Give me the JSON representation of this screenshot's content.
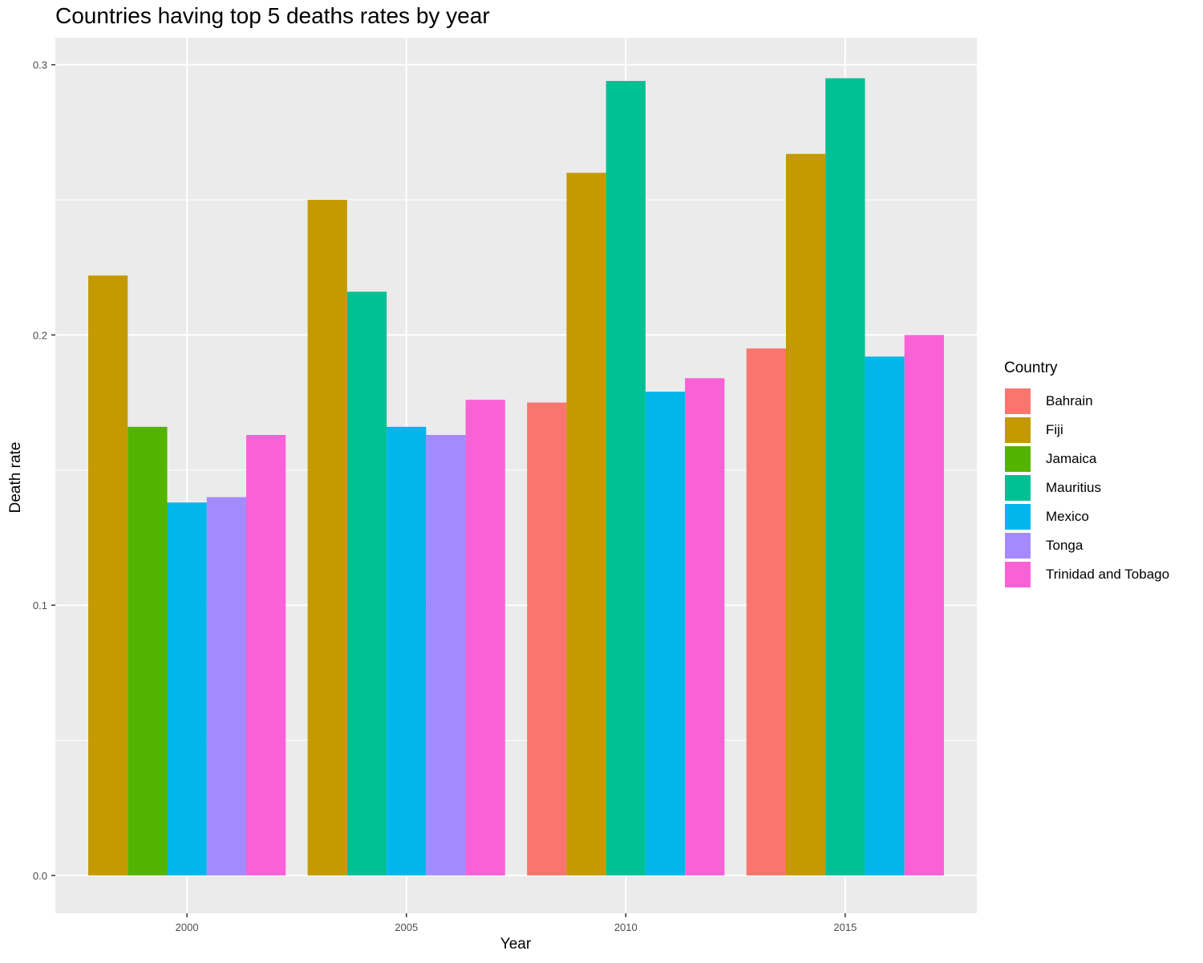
{
  "chart_data": {
    "type": "bar",
    "title": "Countries having top 5 deaths rates by year",
    "xlabel": "Year",
    "ylabel": "Death rate",
    "ylim": [
      -0.014,
      0.31
    ],
    "y_ticks": [
      "0.0",
      "0.1",
      "0.2",
      "0.3"
    ],
    "y_tick_values": [
      0.0,
      0.1,
      0.2,
      0.3
    ],
    "x_ticks": [
      "2000",
      "2005",
      "2010",
      "2015"
    ],
    "xlim": [
      1997,
      2018
    ],
    "legend_title": "Country",
    "legend_position": "right",
    "grid": true,
    "series": [
      {
        "name": "Bahrain",
        "color": "#F8766D"
      },
      {
        "name": "Fiji",
        "color": "#C49A00"
      },
      {
        "name": "Jamaica",
        "color": "#53B400"
      },
      {
        "name": "Mauritius",
        "color": "#00C094"
      },
      {
        "name": "Mexico",
        "color": "#00B6EB"
      },
      {
        "name": "Tonga",
        "color": "#A58AFF"
      },
      {
        "name": "Trinidad and Tobago",
        "color": "#FB61D7"
      }
    ],
    "groups": [
      {
        "year": 2000,
        "bars": [
          {
            "country": "Fiji",
            "value": 0.222
          },
          {
            "country": "Jamaica",
            "value": 0.166
          },
          {
            "country": "Mexico",
            "value": 0.138
          },
          {
            "country": "Tonga",
            "value": 0.14
          },
          {
            "country": "Trinidad and Tobago",
            "value": 0.163
          }
        ]
      },
      {
        "year": 2005,
        "bars": [
          {
            "country": "Fiji",
            "value": 0.25
          },
          {
            "country": "Mauritius",
            "value": 0.216
          },
          {
            "country": "Mexico",
            "value": 0.166
          },
          {
            "country": "Tonga",
            "value": 0.163
          },
          {
            "country": "Trinidad and Tobago",
            "value": 0.176
          }
        ]
      },
      {
        "year": 2010,
        "bars": [
          {
            "country": "Bahrain",
            "value": 0.175
          },
          {
            "country": "Fiji",
            "value": 0.26
          },
          {
            "country": "Mauritius",
            "value": 0.294
          },
          {
            "country": "Mexico",
            "value": 0.179
          },
          {
            "country": "Trinidad and Tobago",
            "value": 0.184
          }
        ]
      },
      {
        "year": 2015,
        "bars": [
          {
            "country": "Bahrain",
            "value": 0.195
          },
          {
            "country": "Fiji",
            "value": 0.267
          },
          {
            "country": "Mauritius",
            "value": 0.295
          },
          {
            "country": "Mexico",
            "value": 0.192
          },
          {
            "country": "Trinidad and Tobago",
            "value": 0.2
          }
        ]
      }
    ]
  }
}
